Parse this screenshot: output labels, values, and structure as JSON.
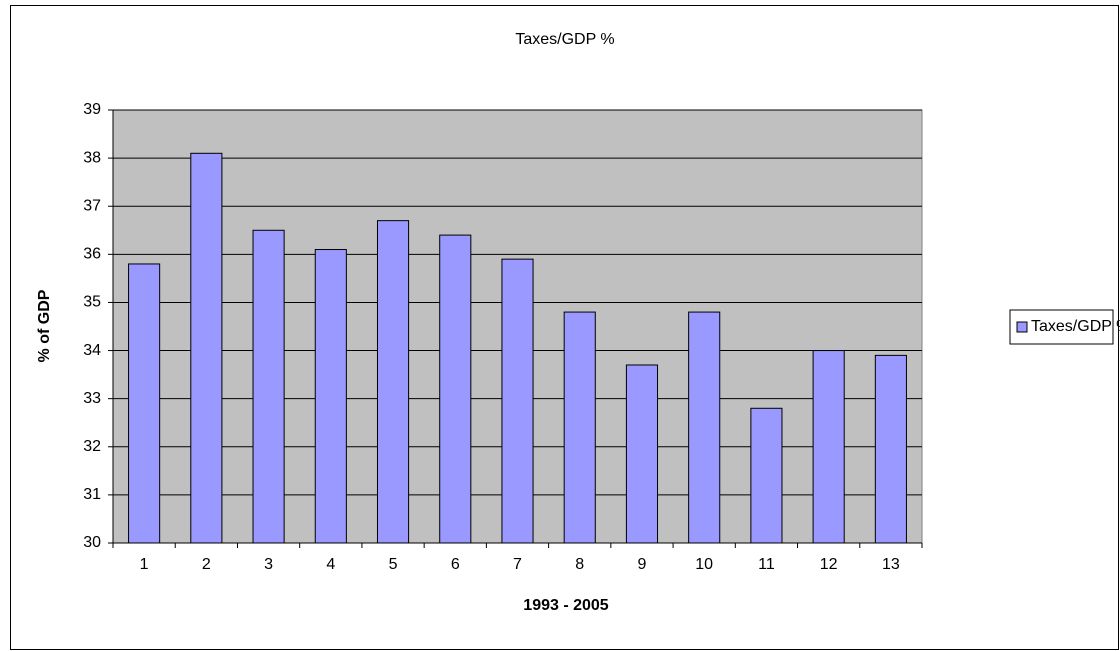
{
  "chart_data": {
    "type": "bar",
    "title": "Taxes/GDP %",
    "x_label": "1993 - 2005",
    "y_label": "% of GDP",
    "categories": [
      "1",
      "2",
      "3",
      "4",
      "5",
      "6",
      "7",
      "8",
      "9",
      "10",
      "11",
      "12",
      "13"
    ],
    "series": [
      {
        "name": "Taxes/GDP %",
        "color": "#9999ff",
        "values": [
          35.8,
          38.1,
          36.5,
          36.1,
          36.7,
          36.4,
          35.9,
          34.8,
          33.7,
          34.8,
          32.8,
          34.0,
          33.9
        ]
      }
    ],
    "ylim": [
      30,
      39
    ],
    "yticks": [
      30,
      31,
      32,
      33,
      34,
      35,
      36,
      37,
      38,
      39
    ],
    "grid": true,
    "plot_background": "#c0c0c0",
    "legend": "right"
  }
}
